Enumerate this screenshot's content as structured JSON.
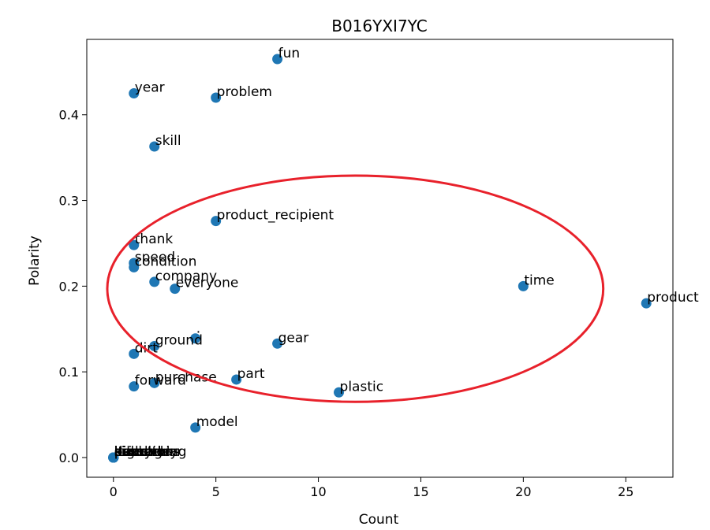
{
  "chart_data": {
    "type": "scatter",
    "title": "B016YXI7YC",
    "xlabel": "Count",
    "ylabel": "Polarity",
    "xlim": [
      -1.3,
      27.3
    ],
    "ylim": [
      -0.023,
      0.488
    ],
    "xticks": [
      0,
      5,
      10,
      15,
      20,
      25
    ],
    "xtick_labels": [
      "0",
      "5",
      "10",
      "15",
      "20",
      "25"
    ],
    "yticks": [
      0.0,
      0.1,
      0.2,
      0.3,
      0.4
    ],
    "ytick_labels": [
      "0.0",
      "0.1",
      "0.2",
      "0.3",
      "0.4"
    ],
    "grid": false,
    "point_color": "#1f77b4",
    "annotation_color": "#e8212b",
    "points": [
      {
        "label": "fun",
        "x": 8,
        "y": 0.465
      },
      {
        "label": "year",
        "x": 1,
        "y": 0.425
      },
      {
        "label": "problem",
        "x": 5,
        "y": 0.42
      },
      {
        "label": "skill",
        "x": 2,
        "y": 0.363
      },
      {
        "label": "product_recipient",
        "x": 5,
        "y": 0.276
      },
      {
        "label": "thank",
        "x": 1,
        "y": 0.248
      },
      {
        "label": "speed",
        "x": 1,
        "y": 0.227
      },
      {
        "label": "condition",
        "x": 1,
        "y": 0.222
      },
      {
        "label": "company",
        "x": 2,
        "y": 0.205
      },
      {
        "label": "everyone",
        "x": 3,
        "y": 0.197
      },
      {
        "label": "time",
        "x": 20,
        "y": 0.2
      },
      {
        "label": "product",
        "x": 26,
        "y": 0.18
      },
      {
        "label": "ground",
        "x": 2,
        "y": 0.13
      },
      {
        "label": "·",
        "x": 4,
        "y": 0.139
      },
      {
        "label": "gear",
        "x": 8,
        "y": 0.133
      },
      {
        "label": "dirt",
        "x": 1,
        "y": 0.121
      },
      {
        "label": "part",
        "x": 6,
        "y": 0.091
      },
      {
        "label": "purchase",
        "x": 2,
        "y": 0.087
      },
      {
        "label": "forward",
        "x": 1,
        "y": 0.083
      },
      {
        "label": "plastic",
        "x": 11,
        "y": 0.076
      },
      {
        "label": "model",
        "x": 4,
        "y": 0.035
      },
      {
        "label": "higher",
        "x": 0,
        "y": 0.0
      },
      {
        "label": "package",
        "x": 0,
        "y": 0.0
      },
      {
        "label": "everything",
        "x": 0,
        "y": 0.0
      },
      {
        "label": "handlebar",
        "x": 0,
        "y": 0.0
      },
      {
        "label": "assembly",
        "x": 0,
        "y": 0.0
      },
      {
        "label": "directions",
        "x": 0,
        "y": 0.0
      },
      {
        "label": "bike",
        "x": 0,
        "y": 0.0
      },
      {
        "label": "price",
        "x": 0,
        "y": 0.0
      },
      {
        "label": "size",
        "x": 0,
        "y": 0.0
      },
      {
        "label": "item",
        "x": 0,
        "y": 0.0
      },
      {
        "label": "kid",
        "x": 0,
        "y": 0.0
      },
      {
        "label": "box",
        "x": 0,
        "y": 0.0
      }
    ],
    "annotation": {
      "type": "ellipse",
      "center": [
        11.8,
        0.197
      ],
      "radius_x": 12.1,
      "radius_y": 0.132
    }
  }
}
